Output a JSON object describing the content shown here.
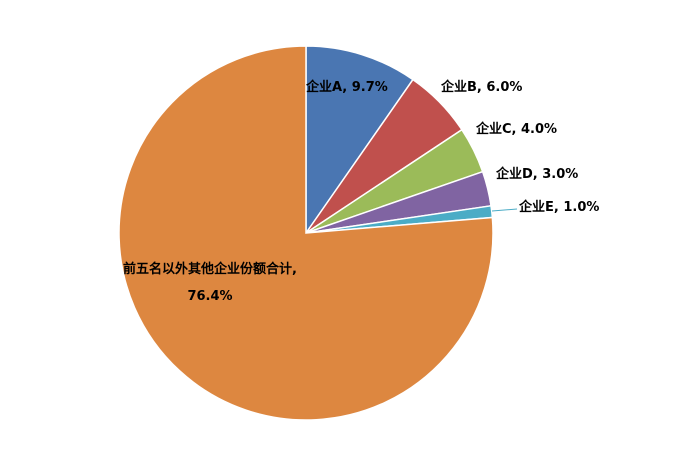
{
  "chart_data": {
    "type": "pie",
    "labels": [
      "企业A, 9.7%",
      "企业B, 6.0%",
      "企业C, 4.0%",
      "企业D, 3.0%",
      "企业E, 1.0%",
      "前五名以外其他企业份额合计, 76.4%"
    ],
    "values": [
      9.7,
      6.0,
      4.0,
      3.0,
      1.0,
      76.4
    ],
    "colors": [
      "#4a76b2",
      "#c0504d",
      "#9bbb59",
      "#8064a2",
      "#4bacc6",
      "#dd8740"
    ]
  }
}
